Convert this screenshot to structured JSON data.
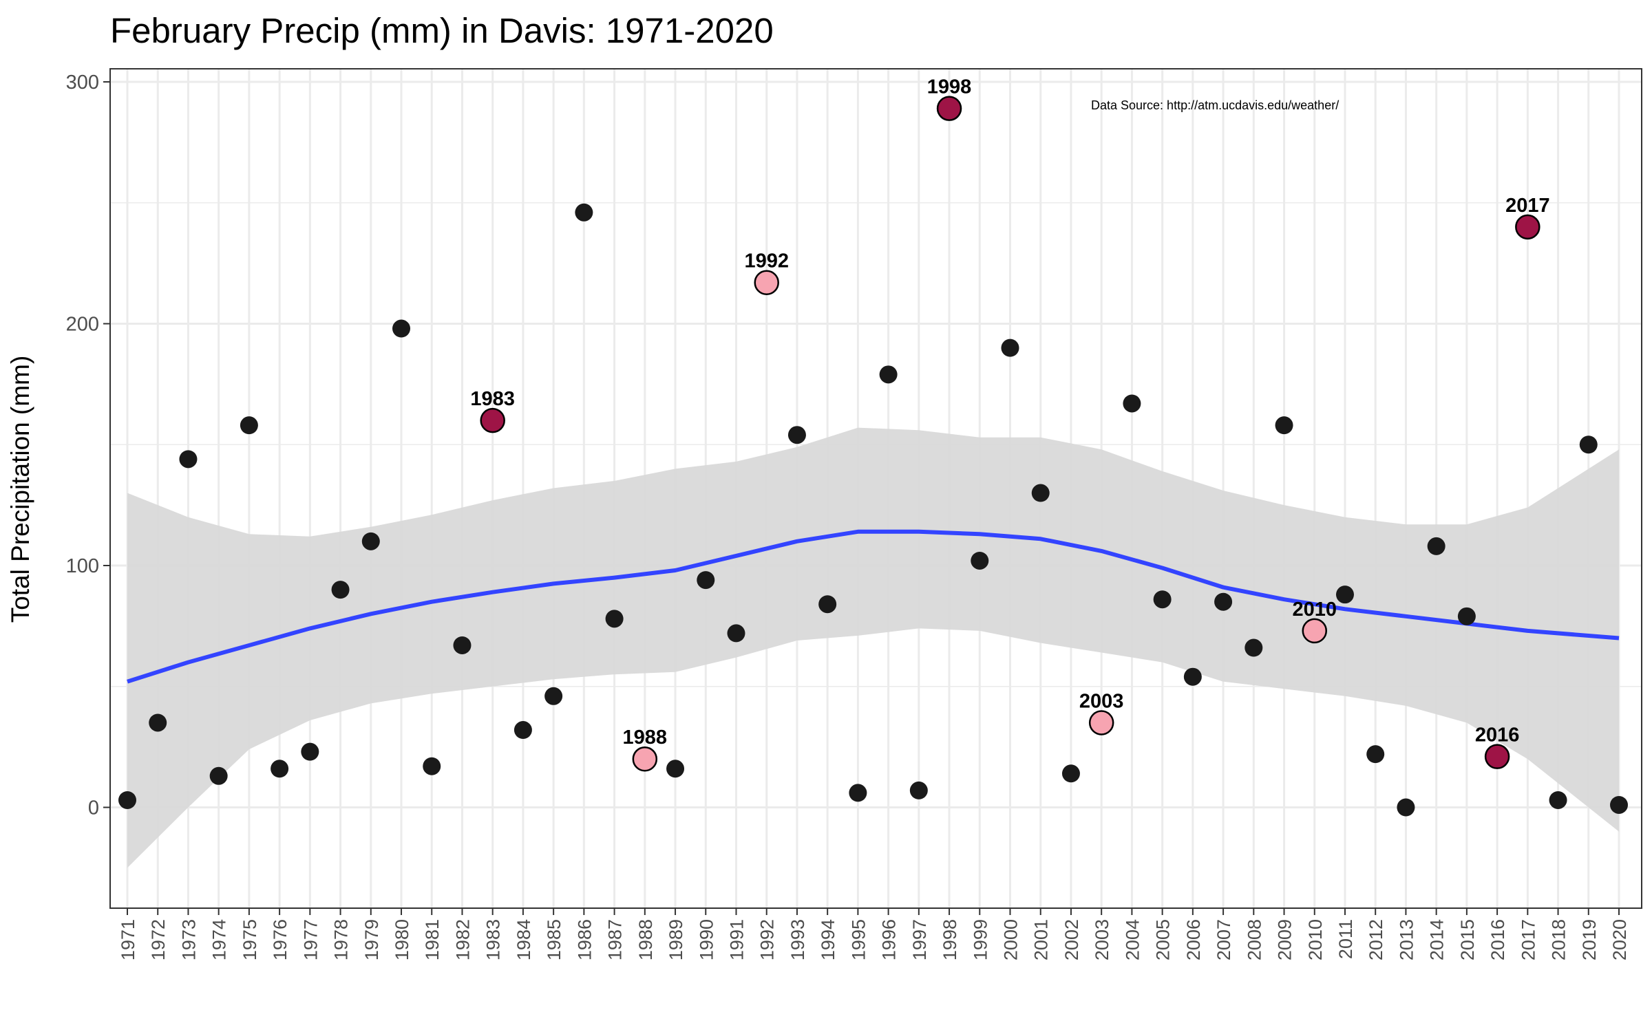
{
  "chart_data": {
    "type": "scatter",
    "title": "February Precip (mm) in Davis: 1971-2020",
    "xlabel": "",
    "ylabel": "Total Precipitation (mm)",
    "source_note": "Data Source: http://atm.ucdavis.edu/weather/",
    "xlim": [
      1971,
      2020
    ],
    "ylim": [
      -40,
      305
    ],
    "y_ticks": [
      0,
      100,
      200,
      300
    ],
    "grid": true,
    "points": [
      {
        "x": 1971,
        "y": 3
      },
      {
        "x": 1972,
        "y": 35
      },
      {
        "x": 1973,
        "y": 144
      },
      {
        "x": 1974,
        "y": 13
      },
      {
        "x": 1975,
        "y": 158
      },
      {
        "x": 1976,
        "y": 16
      },
      {
        "x": 1977,
        "y": 23
      },
      {
        "x": 1978,
        "y": 90
      },
      {
        "x": 1979,
        "y": 110
      },
      {
        "x": 1980,
        "y": 198
      },
      {
        "x": 1981,
        "y": 17
      },
      {
        "x": 1982,
        "y": 67
      },
      {
        "x": 1983,
        "y": 160
      },
      {
        "x": 1984,
        "y": 32
      },
      {
        "x": 1985,
        "y": 46
      },
      {
        "x": 1986,
        "y": 246
      },
      {
        "x": 1987,
        "y": 78
      },
      {
        "x": 1988,
        "y": 20
      },
      {
        "x": 1989,
        "y": 16
      },
      {
        "x": 1990,
        "y": 94
      },
      {
        "x": 1991,
        "y": 72
      },
      {
        "x": 1992,
        "y": 217
      },
      {
        "x": 1993,
        "y": 154
      },
      {
        "x": 1994,
        "y": 84
      },
      {
        "x": 1995,
        "y": 6
      },
      {
        "x": 1996,
        "y": 179
      },
      {
        "x": 1997,
        "y": 7
      },
      {
        "x": 1998,
        "y": 289
      },
      {
        "x": 1999,
        "y": 102
      },
      {
        "x": 2000,
        "y": 190
      },
      {
        "x": 2001,
        "y": 130
      },
      {
        "x": 2002,
        "y": 14
      },
      {
        "x": 2003,
        "y": 35
      },
      {
        "x": 2004,
        "y": 167
      },
      {
        "x": 2005,
        "y": 86
      },
      {
        "x": 2006,
        "y": 54
      },
      {
        "x": 2007,
        "y": 85
      },
      {
        "x": 2008,
        "y": 66
      },
      {
        "x": 2009,
        "y": 158
      },
      {
        "x": 2010,
        "y": 73
      },
      {
        "x": 2011,
        "y": 88
      },
      {
        "x": 2012,
        "y": 22
      },
      {
        "x": 2013,
        "y": 0
      },
      {
        "x": 2014,
        "y": 108
      },
      {
        "x": 2015,
        "y": 79
      },
      {
        "x": 2016,
        "y": 21
      },
      {
        "x": 2017,
        "y": 240
      },
      {
        "x": 2018,
        "y": 3
      },
      {
        "x": 2019,
        "y": 150
      },
      {
        "x": 2020,
        "y": 1
      }
    ],
    "highlighted": [
      {
        "x": 1983,
        "label": "1983",
        "group": "wet"
      },
      {
        "x": 1988,
        "label": "1988",
        "group": "dry"
      },
      {
        "x": 1992,
        "label": "1992",
        "group": "dry"
      },
      {
        "x": 1998,
        "label": "1998",
        "group": "wet"
      },
      {
        "x": 2003,
        "label": "2003",
        "group": "dry"
      },
      {
        "x": 2010,
        "label": "2010",
        "group": "dry"
      },
      {
        "x": 2016,
        "label": "2016",
        "group": "wet"
      },
      {
        "x": 2017,
        "label": "2017",
        "group": "wet"
      }
    ],
    "smooth": {
      "x": [
        1971,
        1973,
        1975,
        1977,
        1979,
        1981,
        1983,
        1985,
        1987,
        1989,
        1991,
        1993,
        1995,
        1997,
        1999,
        2001,
        2003,
        2005,
        2007,
        2009,
        2011,
        2013,
        2015,
        2017,
        2020
      ],
      "fit": [
        52,
        60,
        67,
        74,
        80,
        85,
        89,
        92.5,
        95,
        98,
        104,
        110,
        114,
        114,
        113,
        111,
        106,
        99,
        91,
        86,
        82,
        79,
        76,
        73,
        70
      ],
      "lower": [
        -25,
        0,
        24,
        36,
        43,
        47,
        50,
        53,
        55,
        56,
        62,
        69,
        71,
        74,
        73,
        68,
        64,
        60,
        52,
        49,
        46,
        42,
        35,
        20,
        -10
      ],
      "upper": [
        130,
        120,
        113,
        112,
        116,
        121,
        127,
        132,
        135,
        140,
        143,
        149,
        157,
        156,
        153,
        153,
        148,
        139,
        131,
        125,
        120,
        117,
        117,
        124,
        148
      ]
    },
    "colors": {
      "point": "#1a1a1a",
      "wet": "#9e1446",
      "dry": "#f7a4b1",
      "smooth_line": "#3344ff",
      "ribbon": "#d9d9d9",
      "grid": "#ebebeb",
      "panel_border": "#333333"
    }
  }
}
